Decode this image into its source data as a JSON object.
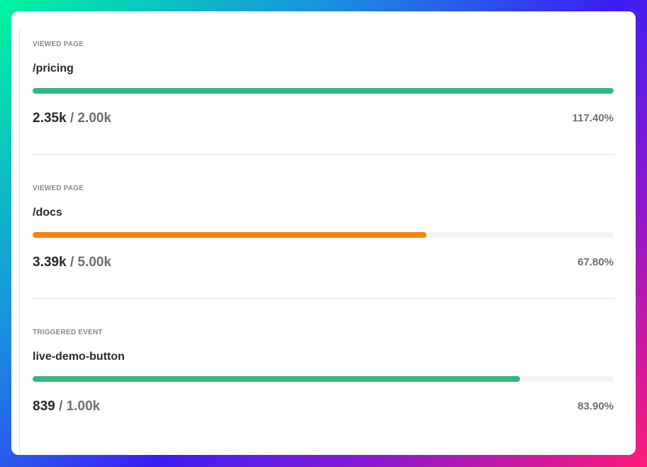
{
  "goals": [
    {
      "label": "VIEWED PAGE",
      "title": "/pricing",
      "current": "2.35k",
      "target": "2.00k",
      "percent_text": "117.40%",
      "progress": 100,
      "color": "#2fb980"
    },
    {
      "label": "VIEWED PAGE",
      "title": "/docs",
      "current": "3.39k",
      "target": "5.00k",
      "percent_text": "67.80%",
      "progress": 67.8,
      "color": "#f5830f"
    },
    {
      "label": "TRIGGERED EVENT",
      "title": "live-demo-button",
      "current": "839",
      "target": "1.00k",
      "percent_text": "83.90%",
      "progress": 83.9,
      "color": "#2fb980"
    }
  ],
  "separator": " / "
}
